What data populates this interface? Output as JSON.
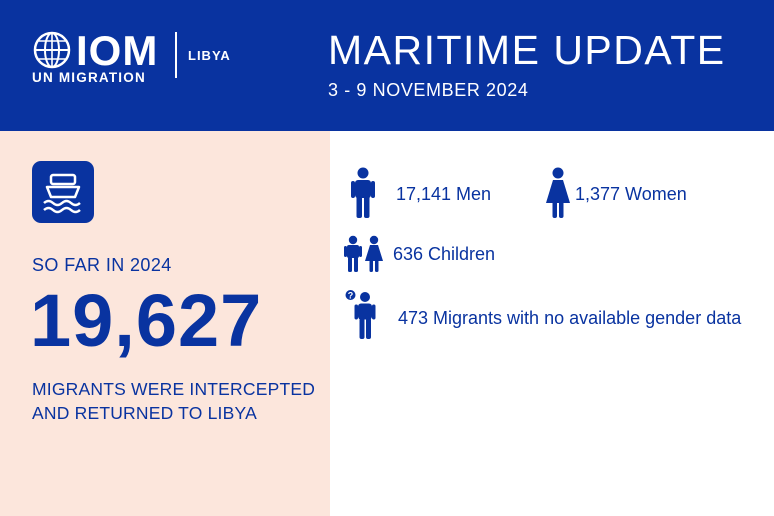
{
  "header": {
    "logo": "IOM",
    "logo_sub": "UN MIGRATION",
    "country": "LIBYA",
    "title": "MARITIME UPDATE",
    "date": "3 - 9 NOVEMBER 2024"
  },
  "summary": {
    "so_far": "SO FAR IN 2024",
    "total": "19,627",
    "caption": "MIGRANTS WERE INTERCEPTED AND RETURNED TO LIBYA"
  },
  "stats": {
    "men": "17,141 Men",
    "women": "1,377 Women",
    "children": "636 Children",
    "unknown": "473 Migrants with no available gender data"
  },
  "colors": {
    "brand_blue": "#0933a0",
    "panel_peach": "#fce6dc"
  },
  "icons": [
    "globe-icon",
    "ship-icon",
    "man-icon",
    "woman-icon",
    "children-icon",
    "unknown-person-icon"
  ]
}
